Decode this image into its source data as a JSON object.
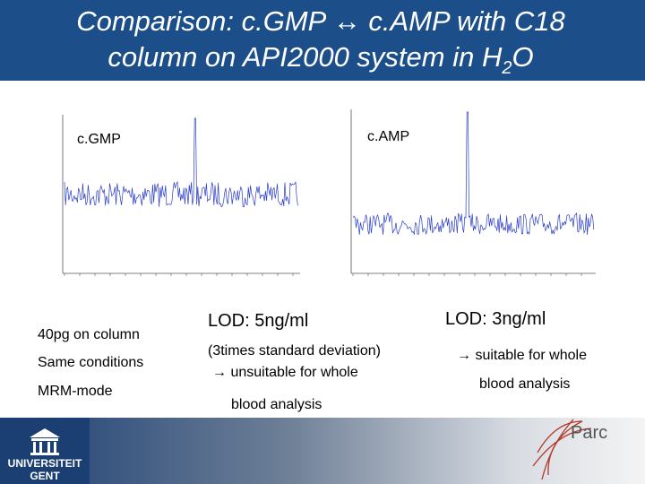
{
  "title": {
    "line1": "Comparison: c.GMP ↔ c.AMP with C18",
    "line2": "column on API2000 system in H",
    "line2_sub": "2",
    "line2_end": "O"
  },
  "charts": {
    "left_label": "c.GMP",
    "right_label": "c.AMP"
  },
  "notes": {
    "col1": [
      "40pg on column",
      "Same conditions",
      "MRM-mode"
    ],
    "col2": {
      "lod": "LOD: 5ng/ml",
      "lines": [
        "(3times standard deviation)",
        "→ unsuitable for whole",
        "blood analysis"
      ]
    },
    "col3": {
      "lod": "LOD: 3ng/ml",
      "lines": [
        "→ suitable for whole",
        "blood analysis"
      ]
    }
  },
  "footer": {
    "university": [
      "UNIVERSITEIT",
      "GENT"
    ],
    "logo": "Parc"
  }
}
